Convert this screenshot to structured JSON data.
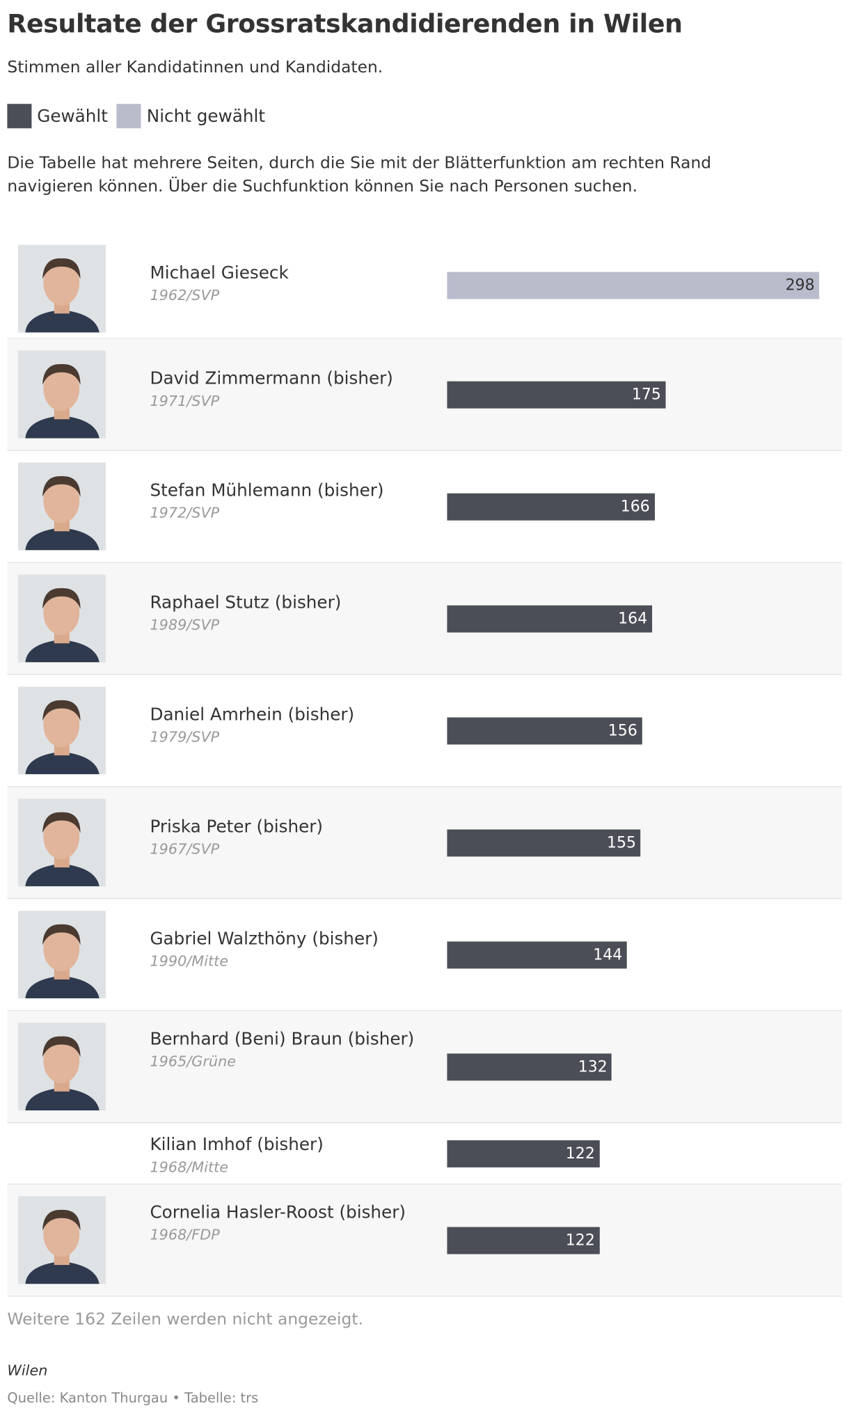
{
  "header": {
    "title": "Resultate der Grossratskandidierenden in Wilen",
    "subtitle": "Stimmen aller Kandidatinnen und Kandidaten.",
    "note": "Die Tabelle hat mehrere Seiten, durch die Sie mit der Blätterfunktion am rechten Rand navigieren können. Über die Suchfunktion können Sie nach Personen suchen."
  },
  "legend": [
    {
      "label": "Gewählt",
      "color": "#4b4e56"
    },
    {
      "label": "Nicht gewählt",
      "color": "#b9bccb"
    }
  ],
  "table": {
    "rows": [
      {
        "name": "Michael Gieseck",
        "meta": "1962/SVP",
        "votes": 298,
        "elected": false,
        "photo": true
      },
      {
        "name": "David Zimmermann (bisher)",
        "meta": "1971/SVP",
        "votes": 175,
        "elected": true,
        "photo": true
      },
      {
        "name": "Stefan Mühlemann (bisher)",
        "meta": "1972/SVP",
        "votes": 166,
        "elected": true,
        "photo": true
      },
      {
        "name": "Raphael Stutz (bisher)",
        "meta": "1989/SVP",
        "votes": 164,
        "elected": true,
        "photo": true
      },
      {
        "name": "Daniel Amrhein (bisher)",
        "meta": "1979/SVP",
        "votes": 156,
        "elected": true,
        "photo": true
      },
      {
        "name": "Priska Peter (bisher)",
        "meta": "1967/SVP",
        "votes": 155,
        "elected": true,
        "photo": true
      },
      {
        "name": "Gabriel Walzthöny (bisher)",
        "meta": "1990/Mitte",
        "votes": 144,
        "elected": true,
        "photo": true
      },
      {
        "name": "Bernhard (Beni) Braun (bisher)",
        "meta": "1965/Grüne",
        "votes": 132,
        "elected": true,
        "photo": true
      },
      {
        "name": "Kilian Imhof (bisher)",
        "meta": "1968/Mitte",
        "votes": 122,
        "elected": true,
        "photo": false
      },
      {
        "name": "Cornelia Hasler-Roost (bisher)",
        "meta": "1968/FDP",
        "votes": 122,
        "elected": true,
        "photo": true
      }
    ]
  },
  "footer": {
    "more": "Weitere 162 Zeilen werden nicht angezeigt.",
    "place": "Wilen",
    "source": "Quelle: Kanton Thurgau • Tabelle: trs"
  }
}
